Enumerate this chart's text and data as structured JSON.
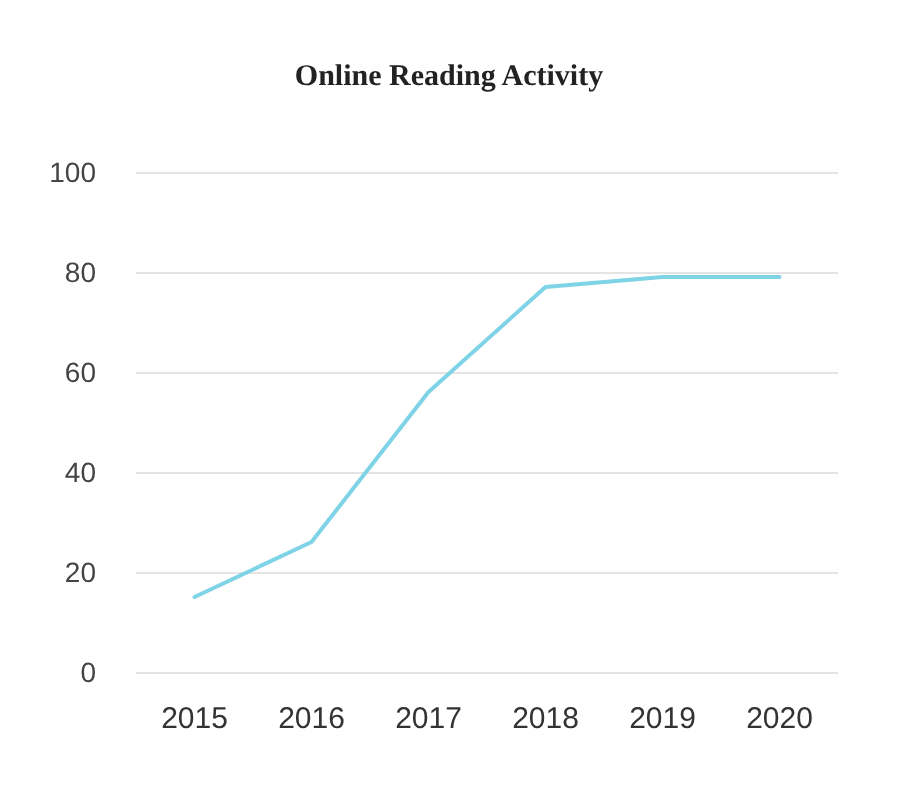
{
  "chart_data": {
    "type": "line",
    "title": "Online Reading Activity",
    "categories": [
      "2015",
      "2016",
      "2017",
      "2018",
      "2019",
      "2020"
    ],
    "series": [
      {
        "color": "#7fd3e6",
        "values": [
          15,
          26,
          56,
          77,
          79,
          79
        ]
      }
    ],
    "ylim": [
      0,
      100
    ],
    "yticks": [
      0,
      20,
      40,
      60,
      80,
      100
    ],
    "grid": "y",
    "marker": "none",
    "line_style": "solid"
  }
}
